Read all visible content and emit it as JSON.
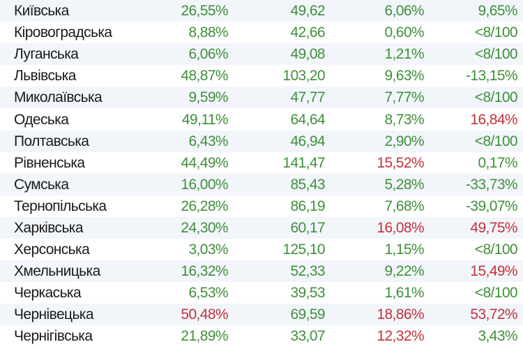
{
  "colors": {
    "green": "#3f8f3a",
    "red": "#c2323a",
    "text": "#1a1a1a"
  },
  "rows": [
    {
      "name": "Київська",
      "c1": "26,55%",
      "c2": "49,62",
      "c3": "6,06%",
      "c4": "9,65%",
      "colors": [
        "green",
        "green",
        "green",
        "green"
      ]
    },
    {
      "name": "Кіровоградська",
      "c1": "8,88%",
      "c2": "42,66",
      "c3": "0,60%",
      "c4": "<8/100",
      "colors": [
        "green",
        "green",
        "green",
        "green"
      ]
    },
    {
      "name": "Луганська",
      "c1": "6,06%",
      "c2": "49,08",
      "c3": "1,21%",
      "c4": "<8/100",
      "colors": [
        "green",
        "green",
        "green",
        "green"
      ]
    },
    {
      "name": "Львівська",
      "c1": "48,87%",
      "c2": "103,20",
      "c3": "9,63%",
      "c4": "-13,15%",
      "colors": [
        "green",
        "green",
        "green",
        "green"
      ]
    },
    {
      "name": "Миколаївська",
      "c1": "9,59%",
      "c2": "47,77",
      "c3": "7,77%",
      "c4": "<8/100",
      "colors": [
        "green",
        "green",
        "green",
        "green"
      ]
    },
    {
      "name": "Одеська",
      "c1": "49,11%",
      "c2": "64,64",
      "c3": "8,73%",
      "c4": "16,84%",
      "colors": [
        "green",
        "green",
        "green",
        "red"
      ]
    },
    {
      "name": "Полтавська",
      "c1": "6,43%",
      "c2": "46,94",
      "c3": "2,90%",
      "c4": "<8/100",
      "colors": [
        "green",
        "green",
        "green",
        "green"
      ]
    },
    {
      "name": "Рівненська",
      "c1": "44,49%",
      "c2": "141,47",
      "c3": "15,52%",
      "c4": "0,17%",
      "colors": [
        "green",
        "green",
        "red",
        "green"
      ]
    },
    {
      "name": "Сумська",
      "c1": "16,00%",
      "c2": "85,43",
      "c3": "5,28%",
      "c4": "-33,73%",
      "colors": [
        "green",
        "green",
        "green",
        "green"
      ]
    },
    {
      "name": "Тернопільська",
      "c1": "26,28%",
      "c2": "86,19",
      "c3": "7,68%",
      "c4": "-39,07%",
      "colors": [
        "green",
        "green",
        "green",
        "green"
      ]
    },
    {
      "name": "Харківська",
      "c1": "24,30%",
      "c2": "60,17",
      "c3": "16,08%",
      "c4": "49,75%",
      "colors": [
        "green",
        "green",
        "red",
        "red"
      ]
    },
    {
      "name": "Херсонська",
      "c1": "3,03%",
      "c2": "125,10",
      "c3": "1,15%",
      "c4": "<8/100",
      "colors": [
        "green",
        "green",
        "green",
        "green"
      ]
    },
    {
      "name": "Хмельницька",
      "c1": "16,32%",
      "c2": "52,33",
      "c3": "9,22%",
      "c4": "15,49%",
      "colors": [
        "green",
        "green",
        "green",
        "red"
      ]
    },
    {
      "name": "Черкаська",
      "c1": "6,53%",
      "c2": "39,53",
      "c3": "1,61%",
      "c4": "<8/100",
      "colors": [
        "green",
        "green",
        "green",
        "green"
      ]
    },
    {
      "name": "Чернівецька",
      "c1": "50,48%",
      "c2": "69,59",
      "c3": "18,86%",
      "c4": "53,72%",
      "colors": [
        "red",
        "green",
        "red",
        "red"
      ]
    },
    {
      "name": "Чернігівська",
      "c1": "21,89%",
      "c2": "33,07",
      "c3": "12,32%",
      "c4": "3,43%",
      "colors": [
        "green",
        "green",
        "red",
        "green"
      ]
    }
  ]
}
